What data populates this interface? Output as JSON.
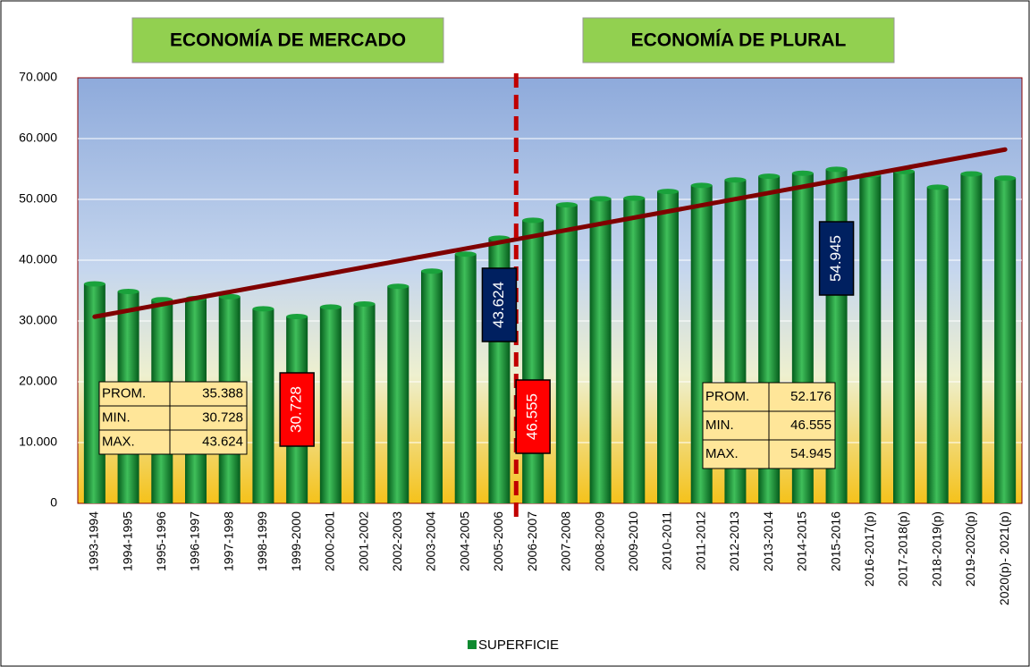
{
  "chart_data": {
    "type": "bar",
    "headers": [
      "ECONOMÍA DE MERCADO",
      "ECONOMÍA DE PLURAL"
    ],
    "categories": [
      "1993-1994",
      "1994-1995",
      "1995-1996",
      "1996-1997",
      "1997-1998",
      "1998-1999",
      "1999-2000",
      "2000-2001",
      "2001-2002",
      "2002-2003",
      "2003-2004",
      "2004-2005",
      "2005-2006",
      "2006-2007",
      "2007-2008",
      "2008-2009",
      "2009-2010",
      "2010-2011",
      "2011-2012",
      "2012-2013",
      "2013-2014",
      "2014-2015",
      "2015-2016",
      "2016-2017(p)",
      "2017-2018(p)",
      "2018-2019(p)",
      "2019-2020(p)",
      "2020(p)- 2021(p)"
    ],
    "series": [
      {
        "name": "SUPERFICIE",
        "color": "#0e8a30",
        "values": [
          36100,
          34850,
          33500,
          33700,
          34000,
          32000,
          30728,
          32300,
          32800,
          35700,
          38200,
          41000,
          43624,
          46555,
          49100,
          50100,
          50200,
          51300,
          52300,
          53200,
          53800,
          54300,
          54945,
          54000,
          54600,
          52000,
          54200,
          53500
        ],
        "value_labels": [
          null,
          null,
          null,
          null,
          null,
          null,
          "30.728",
          null,
          null,
          null,
          null,
          null,
          "43.624",
          "46.555",
          null,
          null,
          null,
          null,
          null,
          null,
          null,
          null,
          "54.945",
          null,
          null,
          null,
          null,
          null
        ],
        "value_label_colors": [
          null,
          null,
          null,
          null,
          null,
          null,
          "#ff0000",
          null,
          null,
          null,
          null,
          null,
          "#002060",
          "#ff0000",
          null,
          null,
          null,
          null,
          null,
          null,
          null,
          null,
          "#002060",
          null,
          null,
          null,
          null,
          null
        ]
      }
    ],
    "trend": {
      "color": "#7f0000",
      "values": [
        30700,
        58200
      ]
    },
    "ylim": [
      0,
      70000
    ],
    "yticks": [
      0,
      {
        "value": 10000,
        "label": "10.000"
      },
      {
        "value": 20000,
        "label": "20.000"
      },
      {
        "value": 30000,
        "label": "30.000"
      },
      {
        "value": 40000,
        "label": "40.000"
      },
      {
        "value": 50000,
        "label": "50.000"
      },
      {
        "value": 60000,
        "label": "60.000"
      },
      {
        "value": 70000,
        "label": "70.000"
      }
    ],
    "grid": true,
    "stats": [
      {
        "rows": [
          [
            "PROM.",
            "35.388"
          ],
          [
            "MIN.",
            "30.728"
          ],
          [
            "MAX.",
            "43.624"
          ]
        ]
      },
      {
        "rows": [
          [
            "PROM.",
            "52.176"
          ],
          [
            "MIN.",
            "46.555"
          ],
          [
            "MAX.",
            "54.945"
          ]
        ]
      }
    ],
    "legend": "bottom"
  }
}
